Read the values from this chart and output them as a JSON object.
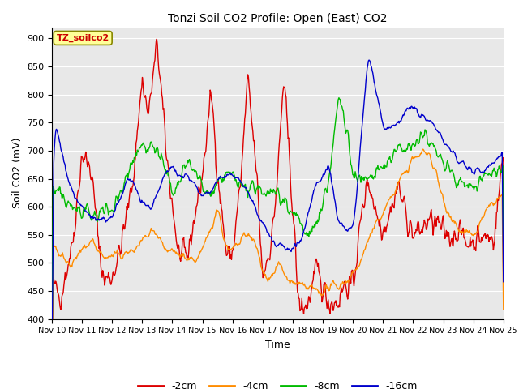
{
  "title": "Tonzi Soil CO2 Profile: Open (East) CO2",
  "xlabel": "Time",
  "ylabel": "Soil CO2 (mV)",
  "ylim": [
    400,
    920
  ],
  "yticks": [
    400,
    450,
    500,
    550,
    600,
    650,
    700,
    750,
    800,
    850,
    900
  ],
  "xtick_labels": [
    "Nov 10",
    "Nov 11",
    "Nov 12",
    "Nov 13",
    "Nov 14",
    "Nov 15",
    "Nov 16",
    "Nov 17",
    "Nov 18",
    "Nov 19",
    "Nov 20",
    "Nov 21",
    "Nov 22",
    "Nov 23",
    "Nov 24",
    "Nov 25"
  ],
  "legend_labels": [
    "-2cm",
    "-4cm",
    "-8cm",
    "-16cm"
  ],
  "line_colors": [
    "#dd0000",
    "#ff8c00",
    "#00bb00",
    "#0000cc"
  ],
  "plot_bg_color": "#e8e8e8",
  "fig_bg_color": "#ffffff",
  "grid_color": "#ffffff",
  "annotation_text": "TZ_soilco2",
  "annotation_bg": "#ffff99",
  "annotation_border": "#cc0000"
}
